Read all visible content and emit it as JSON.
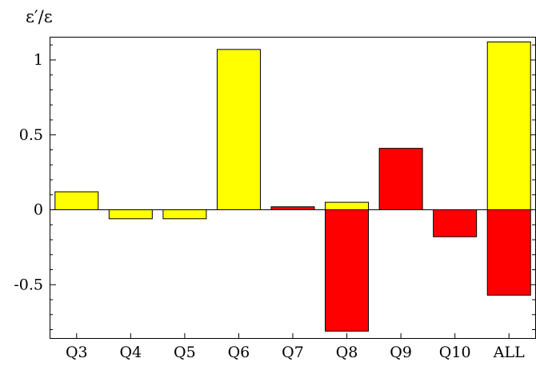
{
  "chart_data": {
    "type": "bar",
    "title": "",
    "xlabel": "",
    "ylabel": "ε′/ε",
    "ylim": [
      -0.82,
      1.17
    ],
    "grid": false,
    "legend": "none",
    "y_ticks": [
      {
        "value": 1,
        "label": "1"
      },
      {
        "value": 0.5,
        "label": "0.5"
      },
      {
        "value": 0,
        "label": "0"
      },
      {
        "value": -0.5,
        "label": "-0.5"
      }
    ],
    "categories": [
      "Q3",
      "Q4",
      "Q5",
      "Q6",
      "Q7",
      "Q8",
      "Q9",
      "Q10",
      "ALL"
    ],
    "colors": {
      "yellow": "#ffff00",
      "red": "#ff0000",
      "outline": "#000000"
    },
    "bars": [
      {
        "category": "Q3",
        "segments": [
          {
            "value": 0.12,
            "color": "yellow"
          }
        ]
      },
      {
        "category": "Q4",
        "segments": [
          {
            "value": -0.06,
            "color": "yellow"
          }
        ]
      },
      {
        "category": "Q5",
        "segments": [
          {
            "value": -0.06,
            "color": "yellow"
          }
        ]
      },
      {
        "category": "Q6",
        "segments": [
          {
            "value": 1.07,
            "color": "yellow"
          }
        ]
      },
      {
        "category": "Q7",
        "segments": [
          {
            "value": 0.02,
            "color": "red"
          }
        ]
      },
      {
        "category": "Q8",
        "segments": [
          {
            "value": 0.05,
            "color": "yellow"
          },
          {
            "value": -0.81,
            "color": "red"
          }
        ]
      },
      {
        "category": "Q9",
        "segments": [
          {
            "value": 0.41,
            "color": "red"
          }
        ]
      },
      {
        "category": "Q10",
        "segments": [
          {
            "value": -0.18,
            "color": "red"
          }
        ]
      },
      {
        "category": "ALL",
        "segments": [
          {
            "value": 1.12,
            "color": "yellow"
          },
          {
            "value": -0.57,
            "color": "red"
          }
        ]
      }
    ]
  }
}
